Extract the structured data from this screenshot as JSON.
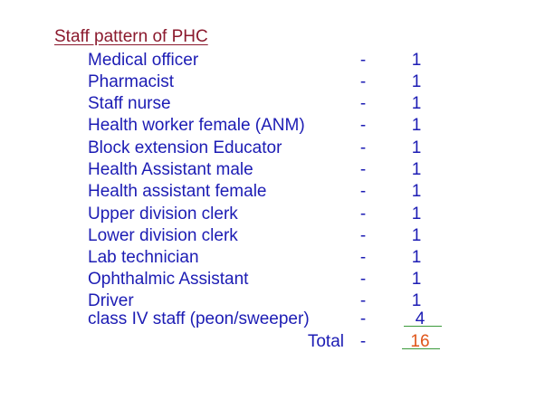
{
  "title": "Staff pattern of PHC",
  "staff": [
    {
      "role": "Medical officer",
      "dash": "-",
      "count": "1"
    },
    {
      "role": "Pharmacist",
      "dash": "-",
      "count": "1"
    },
    {
      "role": "Staff nurse",
      "dash": "-",
      "count": "1"
    },
    {
      "role": "Health worker female (ANM)",
      "dash": "-",
      "count": "1"
    },
    {
      "role": "Block extension Educator",
      "dash": "-",
      "count": "1"
    },
    {
      "role": "Health Assistant male",
      "dash": "-",
      "count": "1"
    },
    {
      "role": "Health assistant female",
      "dash": "-",
      "count": "1"
    },
    {
      "role": "Upper division clerk",
      "dash": "-",
      "count": "1"
    },
    {
      "role": "Lower division clerk",
      "dash": "-",
      "count": "1"
    },
    {
      "role": "Lab technician",
      "dash": "-",
      "count": "1"
    },
    {
      "role": "Ophthalmic Assistant",
      "dash": "-",
      "count": "1"
    },
    {
      "role": "Driver",
      "dash": "-",
      "count": "1"
    },
    {
      "role": "class IV staff (peon/sweeper)",
      "dash": "-",
      "count": "4"
    }
  ],
  "total": {
    "label": "Total",
    "dash": "-",
    "count": "16"
  },
  "colors": {
    "title": "#8b1a2e",
    "text": "#1c1cb4",
    "total_value": "#e0561a",
    "underline": "#3a9a3a"
  }
}
